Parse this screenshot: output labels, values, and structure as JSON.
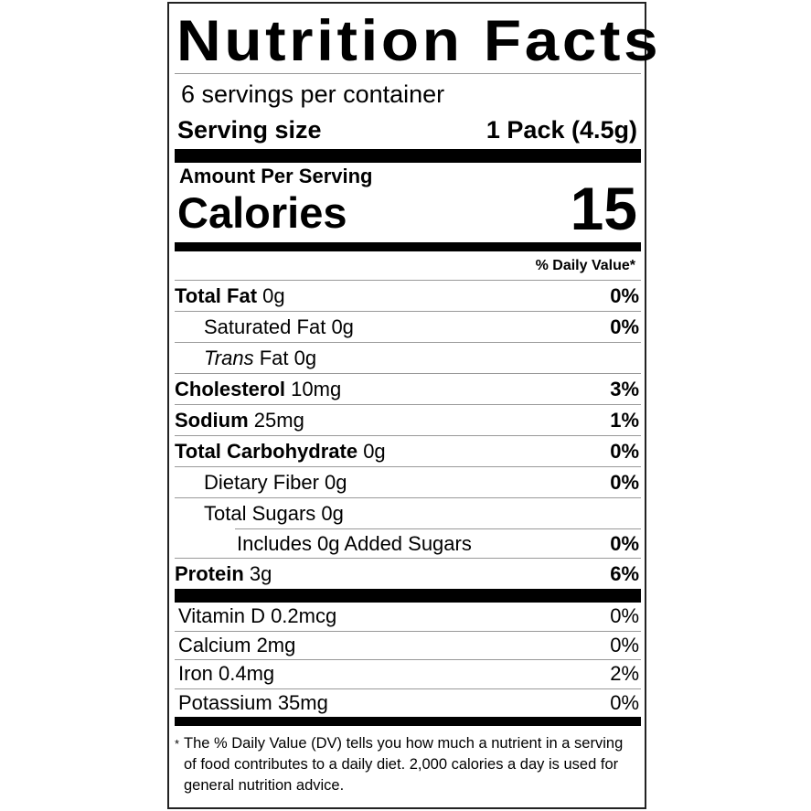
{
  "title": "Nutrition Facts",
  "servings_per_container": "6 servings per container",
  "serving_size_label": "Serving size",
  "serving_size_value": "1 Pack (4.5g)",
  "amount_per_serving": "Amount Per Serving",
  "calories_label": "Calories",
  "calories_value": "15",
  "daily_value_header": "% Daily Value*",
  "nutrients": [
    {
      "name": "Total Fat",
      "amount": "0g",
      "dv": "0%"
    },
    {
      "name": "Saturated Fat",
      "amount": "0g",
      "dv": "0%"
    },
    {
      "name": "Trans",
      "suffix": "Fat",
      "amount": "0g",
      "dv": ""
    },
    {
      "name": "Cholesterol",
      "amount": "10mg",
      "dv": "3%"
    },
    {
      "name": "Sodium",
      "amount": "25mg",
      "dv": "1%"
    },
    {
      "name": "Total Carbohydrate",
      "amount": "0g",
      "dv": "0%"
    },
    {
      "name": "Dietary Fiber",
      "amount": "0g",
      "dv": "0%"
    },
    {
      "name": "Total Sugars",
      "amount": "0g",
      "dv": ""
    },
    {
      "name": "Includes 0g Added Sugars",
      "amount": "",
      "dv": "0%"
    },
    {
      "name": "Protein",
      "amount": "3g",
      "dv": "6%"
    }
  ],
  "vitamins": [
    {
      "label": "Vitamin D 0.2mcg",
      "dv": "0%"
    },
    {
      "label": "Calcium 2mg",
      "dv": "0%"
    },
    {
      "label": "Iron 0.4mg",
      "dv": "2%"
    },
    {
      "label": "Potassium 35mg",
      "dv": "0%"
    }
  ],
  "footnote_star": "*",
  "footnote": "The % Daily Value (DV) tells you how much a nutrient in a serving of food contributes to a daily diet. 2,000 calories a day is used for general nutrition advice."
}
